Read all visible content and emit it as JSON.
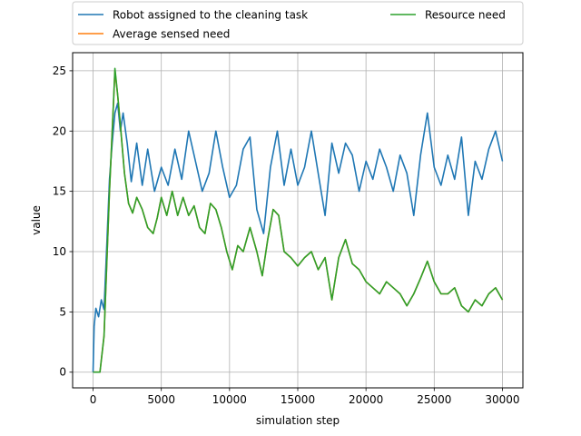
{
  "chart_data": {
    "type": "line",
    "xlabel": "simulation step",
    "ylabel": "value",
    "xlim": [
      -1500,
      31500
    ],
    "ylim": [
      -1.3,
      26.5
    ],
    "xticks": [
      0,
      5000,
      10000,
      15000,
      20000,
      25000,
      30000
    ],
    "xtick_labels": [
      "0",
      "5000",
      "10000",
      "15000",
      "20000",
      "25000",
      "30000"
    ],
    "yticks": [
      0,
      5,
      10,
      15,
      20,
      25
    ],
    "ytick_labels": [
      "0",
      "5",
      "10",
      "15",
      "20",
      "25"
    ],
    "grid": true,
    "legend_position": "top, above plot, two columns",
    "series": [
      {
        "name": "Robot assigned to the cleaning task",
        "color": "#1f77b4",
        "x": [
          0,
          80,
          200,
          400,
          600,
          800,
          1000,
          1200,
          1400,
          1600,
          1800,
          2000,
          2200,
          2500,
          2800,
          3200,
          3600,
          4000,
          4500,
          5000,
          5500,
          6000,
          6500,
          7000,
          7500,
          8000,
          8500,
          9000,
          9500,
          10000,
          10500,
          11000,
          11500,
          12000,
          12500,
          13000,
          13500,
          14000,
          14500,
          15000,
          15500,
          16000,
          16500,
          17000,
          17500,
          18000,
          18500,
          19000,
          19500,
          20000,
          20500,
          21000,
          21500,
          22000,
          22500,
          23000,
          23500,
          24000,
          24500,
          25000,
          25500,
          26000,
          26500,
          27000,
          27500,
          28000,
          28500,
          29000,
          29500,
          30000
        ],
        "y": [
          0,
          3.8,
          5.3,
          4.6,
          6.0,
          5.2,
          10.5,
          16.0,
          19.0,
          21.5,
          22.3,
          20.0,
          21.5,
          19.0,
          15.8,
          19.0,
          15.5,
          18.5,
          15.0,
          17.0,
          15.5,
          18.5,
          16.0,
          20.0,
          17.5,
          15.0,
          16.5,
          20.0,
          17.0,
          14.5,
          15.5,
          18.5,
          19.5,
          13.5,
          11.5,
          17.0,
          20.0,
          15.5,
          18.5,
          15.5,
          17.0,
          20.0,
          16.5,
          13.0,
          19.0,
          16.5,
          19.0,
          18.0,
          15.0,
          17.5,
          16.0,
          18.5,
          17.0,
          15.0,
          18.0,
          16.5,
          13.0,
          18.0,
          21.5,
          17.0,
          15.5,
          18.0,
          16.0,
          19.5,
          13.0,
          17.5,
          16.0,
          18.5,
          20.0,
          17.5
        ]
      },
      {
        "name": "Average sensed need",
        "color": "#ff7f0e",
        "x": [
          0,
          500,
          800,
          1000,
          1200,
          1500,
          1600,
          1800,
          2000,
          2300,
          2600,
          2900,
          3200,
          3600,
          4000,
          4400,
          4700,
          5000,
          5400,
          5800,
          6200,
          6600,
          7000,
          7400,
          7800,
          8200,
          8600,
          9000,
          9400,
          9800,
          10200,
          10600,
          11000,
          11500,
          12000,
          12400,
          12800,
          13200,
          13600,
          14000,
          14500,
          15000,
          15500,
          16000,
          16500,
          17000,
          17500,
          18000,
          18500,
          19000,
          19500,
          20000,
          20500,
          21000,
          21500,
          22000,
          22500,
          23000,
          23500,
          24000,
          24500,
          25000,
          25500,
          26000,
          26500,
          27000,
          27500,
          28000,
          28500,
          29000,
          29500,
          30000
        ],
        "y": [
          0,
          0,
          3.0,
          9.0,
          15.0,
          22.5,
          25.0,
          23.0,
          20.5,
          16.5,
          14.0,
          13.2,
          14.5,
          13.5,
          12.0,
          11.5,
          12.8,
          14.5,
          13.0,
          15.0,
          13.0,
          14.5,
          13.0,
          13.8,
          12.0,
          11.5,
          14.0,
          13.5,
          12.0,
          10.0,
          8.5,
          10.5,
          10.0,
          12.0,
          10.0,
          8.0,
          11.0,
          13.5,
          13.0,
          10.0,
          9.5,
          8.8,
          9.5,
          10.0,
          8.5,
          9.5,
          6.0,
          9.5,
          11.0,
          9.0,
          8.5,
          7.5,
          7.0,
          6.5,
          7.5,
          7.0,
          6.5,
          5.5,
          6.5,
          7.8,
          9.2,
          7.5,
          6.5,
          6.5,
          7.0,
          5.5,
          5.0,
          6.0,
          5.5,
          6.5,
          7.0,
          6.0
        ]
      },
      {
        "name": "Resource need",
        "color": "#2ca02c",
        "x": [
          0,
          500,
          800,
          1000,
          1200,
          1500,
          1600,
          1800,
          2000,
          2300,
          2600,
          2900,
          3200,
          3600,
          4000,
          4400,
          4700,
          5000,
          5400,
          5800,
          6200,
          6600,
          7000,
          7400,
          7800,
          8200,
          8600,
          9000,
          9400,
          9800,
          10200,
          10600,
          11000,
          11500,
          12000,
          12400,
          12800,
          13200,
          13600,
          14000,
          14500,
          15000,
          15500,
          16000,
          16500,
          17000,
          17500,
          18000,
          18500,
          19000,
          19500,
          20000,
          20500,
          21000,
          21500,
          22000,
          22500,
          23000,
          23500,
          24000,
          24500,
          25000,
          25500,
          26000,
          26500,
          27000,
          27500,
          28000,
          28500,
          29000,
          29500,
          30000
        ],
        "y": [
          0,
          0,
          3.0,
          9.0,
          15.0,
          22.5,
          25.2,
          23.0,
          20.5,
          16.5,
          14.0,
          13.2,
          14.5,
          13.5,
          12.0,
          11.5,
          12.8,
          14.5,
          13.0,
          15.0,
          13.0,
          14.5,
          13.0,
          13.8,
          12.0,
          11.5,
          14.0,
          13.5,
          12.0,
          10.0,
          8.5,
          10.5,
          10.0,
          12.0,
          10.0,
          8.0,
          11.0,
          13.5,
          13.0,
          10.0,
          9.5,
          8.8,
          9.5,
          10.0,
          8.5,
          9.5,
          6.0,
          9.5,
          11.0,
          9.0,
          8.5,
          7.5,
          7.0,
          6.5,
          7.5,
          7.0,
          6.5,
          5.5,
          6.5,
          7.8,
          9.2,
          7.5,
          6.5,
          6.5,
          7.0,
          5.5,
          5.0,
          6.0,
          5.5,
          6.5,
          7.0,
          6.0
        ]
      }
    ]
  }
}
